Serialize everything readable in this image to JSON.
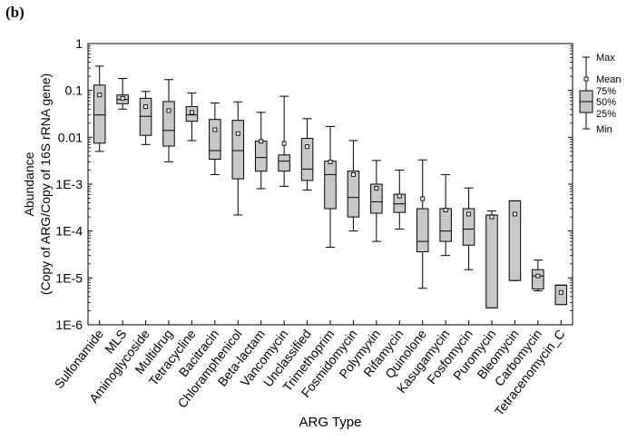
{
  "panel_label": "(b)",
  "chart_data": {
    "type": "box",
    "xlabel": "ARG Type",
    "ylabel_lines": [
      "Abundance",
      "(Copy of ARG/Copy of 16S rRNA gene)"
    ],
    "yscale": "log",
    "ylim": [
      1e-06,
      1
    ],
    "ytick_values": [
      1e-06,
      1e-05,
      0.0001,
      0.001,
      0.01,
      0.1,
      1
    ],
    "ytick_labels": [
      "1E-6",
      "1E-5",
      "1E-4",
      "1E-3",
      "0.01",
      "0.1",
      "1"
    ],
    "categories": [
      "Sulfonamide",
      "MLS",
      "Aminoglycoside",
      "Multidrug",
      "Tetracycline",
      "Bacitracin",
      "Chloramphenicol",
      "Beta-lactam",
      "Vancomycin",
      "Unclassified",
      "Trimethoprim",
      "Fosmidomycin",
      "Polymyxin",
      "Rifamycin",
      "Quinolone",
      "Kasugamycin",
      "Fosfomycin",
      "Puromycin",
      "Bleomycin",
      "Carbomycin",
      "Tetracenomycin_C"
    ],
    "boxes": [
      {
        "min": 0.005,
        "q1": 0.0075,
        "median": 0.03,
        "q3": 0.13,
        "max": 0.33,
        "mean": 0.08
      },
      {
        "min": 0.04,
        "q1": 0.052,
        "median": 0.064,
        "q3": 0.08,
        "max": 0.18,
        "mean": 0.068
      },
      {
        "min": 0.007,
        "q1": 0.011,
        "median": 0.028,
        "q3": 0.068,
        "max": 0.095,
        "mean": 0.045
      },
      {
        "min": 0.003,
        "q1": 0.0065,
        "median": 0.014,
        "q3": 0.058,
        "max": 0.17,
        "mean": 0.037
      },
      {
        "min": 0.0085,
        "q1": 0.022,
        "median": 0.03,
        "q3": 0.045,
        "max": 0.088,
        "mean": 0.034
      },
      {
        "min": 0.0016,
        "q1": 0.0034,
        "median": 0.0052,
        "q3": 0.024,
        "max": 0.054,
        "mean": 0.0145
      },
      {
        "min": 0.00022,
        "q1": 0.0013,
        "median": 0.0052,
        "q3": 0.023,
        "max": 0.057,
        "mean": 0.012
      },
      {
        "min": 0.0008,
        "q1": 0.0019,
        "median": 0.0037,
        "q3": 0.0083,
        "max": 0.034,
        "mean": 0.0082
      },
      {
        "min": 0.0009,
        "q1": 0.0019,
        "median": 0.0031,
        "q3": 0.0042,
        "max": 0.075,
        "mean": 0.0074
      },
      {
        "min": 0.00075,
        "q1": 0.0012,
        "median": 0.0021,
        "q3": 0.0095,
        "max": 0.025,
        "mean": 0.0063
      },
      {
        "min": 4.5e-05,
        "q1": 0.0003,
        "median": 0.0016,
        "q3": 0.0031,
        "max": 0.017,
        "mean": 0.003
      },
      {
        "min": 0.0001,
        "q1": 0.0002,
        "median": 0.00052,
        "q3": 0.0019,
        "max": 0.0085,
        "mean": 0.0016
      },
      {
        "min": 6e-05,
        "q1": 0.00024,
        "median": 0.00042,
        "q3": 0.001,
        "max": 0.0032,
        "mean": 0.00082
      },
      {
        "min": 0.00011,
        "q1": 0.00025,
        "median": 0.00038,
        "q3": 0.00061,
        "max": 0.002,
        "mean": 0.00056
      },
      {
        "min": 6e-06,
        "q1": 3.6e-05,
        "median": 6e-05,
        "q3": 0.0003,
        "max": 0.0033,
        "mean": 0.00049
      },
      {
        "min": 3e-05,
        "q1": 6e-05,
        "median": 0.0001,
        "q3": 0.0003,
        "max": 0.0016,
        "mean": 0.00028
      },
      {
        "min": 1.5e-05,
        "q1": 5e-05,
        "median": 0.00011,
        "q3": 0.0003,
        "max": 0.00083,
        "mean": 0.00023
      },
      {
        "min": 2.3e-06,
        "q1": 2.3e-06,
        "median": 0.00022,
        "q3": 0.00022,
        "max": 0.00027,
        "mean": 0.0002
      },
      {
        "min": 8.8e-06,
        "q1": 8.8e-06,
        "median": 0.00044,
        "q3": 0.00044,
        "max": 0.00044,
        "mean": 0.00023
      },
      {
        "min": 5.3e-06,
        "q1": 5.8e-06,
        "median": 1.1e-05,
        "q3": 1.5e-05,
        "max": 2.4e-05,
        "mean": 1.1e-05
      },
      {
        "min": 2.7e-06,
        "q1": 2.7e-06,
        "median": 7e-06,
        "q3": 7e-06,
        "max": 7e-06,
        "mean": 4.9e-06
      }
    ],
    "legend": {
      "position": "right",
      "labels": {
        "max": "Max",
        "mean": "Mean",
        "q3": "75%",
        "median": "50%",
        "q1": "25%",
        "min": "Min"
      }
    },
    "colors": {
      "box_fill": "#c8c8c8",
      "line": "#000000"
    }
  }
}
